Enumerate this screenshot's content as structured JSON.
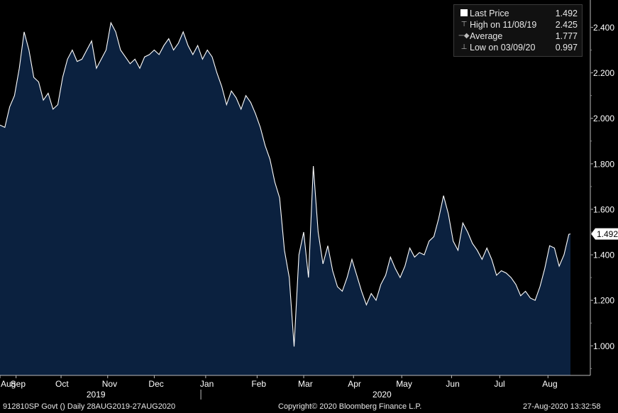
{
  "legend": {
    "items": [
      {
        "icon": "last-price-swatch",
        "label": "Last Price",
        "value": "1.492"
      },
      {
        "icon": "high-marker-icon",
        "label": "High on 11/08/19",
        "value": "2.425"
      },
      {
        "icon": "average-marker-icon",
        "label": "Average",
        "value": "1.777"
      },
      {
        "icon": "low-marker-icon",
        "label": "Low on 03/09/20",
        "value": "0.997"
      }
    ]
  },
  "last_price_tag": "1.492",
  "footer": {
    "left": "912810SP Govt ()  Daily 28AUG2019-27AUG2020",
    "center": "Copyright© 2020 Bloomberg Finance L.P.",
    "right": "27-Aug-2020 13:32:58"
  },
  "colors": {
    "background": "#000000",
    "area_fill": "#0b213f",
    "line": "#ffffff",
    "axis_text": "#ffffff"
  },
  "chart_data": {
    "type": "area",
    "x_start_label": "28AUG2019",
    "x_end_label": "27AUG2020",
    "ylim": [
      0.87,
      2.52
    ],
    "y_ticks": [
      "1.000",
      "1.200",
      "1.400",
      "1.600",
      "1.800",
      "2.000",
      "2.200",
      "2.400"
    ],
    "y_tick_values": [
      1.0,
      1.2,
      1.4,
      1.6,
      1.8,
      2.0,
      2.2,
      2.4
    ],
    "month_labels": [
      {
        "label": "Aug",
        "day": 0
      },
      {
        "label": "Sep",
        "day": 10
      },
      {
        "label": "Oct",
        "day": 38
      },
      {
        "label": "Nov",
        "day": 67
      },
      {
        "label": "Dec",
        "day": 96
      },
      {
        "label": "Jan",
        "day": 128
      },
      {
        "label": "Feb",
        "day": 160
      },
      {
        "label": "Mar",
        "day": 189
      },
      {
        "label": "Apr",
        "day": 220
      },
      {
        "label": "May",
        "day": 250
      },
      {
        "label": "Jun",
        "day": 281
      },
      {
        "label": "Jul",
        "day": 311
      },
      {
        "label": "Aug",
        "day": 341
      }
    ],
    "year_labels": [
      {
        "label": "2019",
        "day": 60
      },
      {
        "label": "2020",
        "day": 238
      }
    ],
    "series": [
      {
        "values": [
          [
            0,
            1.97
          ],
          [
            3,
            1.96
          ],
          [
            6,
            2.05
          ],
          [
            9,
            2.1
          ],
          [
            12,
            2.22
          ],
          [
            15,
            2.38
          ],
          [
            18,
            2.3
          ],
          [
            21,
            2.18
          ],
          [
            24,
            2.16
          ],
          [
            27,
            2.08
          ],
          [
            30,
            2.11
          ],
          [
            33,
            2.04
          ],
          [
            36,
            2.06
          ],
          [
            39,
            2.18
          ],
          [
            42,
            2.26
          ],
          [
            45,
            2.3
          ],
          [
            48,
            2.25
          ],
          [
            51,
            2.26
          ],
          [
            54,
            2.3
          ],
          [
            57,
            2.34
          ],
          [
            60,
            2.22
          ],
          [
            63,
            2.26
          ],
          [
            66,
            2.3
          ],
          [
            69,
            2.42
          ],
          [
            72,
            2.38
          ],
          [
            75,
            2.3
          ],
          [
            78,
            2.27
          ],
          [
            81,
            2.24
          ],
          [
            84,
            2.26
          ],
          [
            87,
            2.22
          ],
          [
            90,
            2.27
          ],
          [
            93,
            2.28
          ],
          [
            96,
            2.3
          ],
          [
            99,
            2.28
          ],
          [
            102,
            2.32
          ],
          [
            105,
            2.35
          ],
          [
            108,
            2.3
          ],
          [
            111,
            2.33
          ],
          [
            114,
            2.38
          ],
          [
            117,
            2.32
          ],
          [
            120,
            2.28
          ],
          [
            123,
            2.32
          ],
          [
            126,
            2.26
          ],
          [
            129,
            2.3
          ],
          [
            132,
            2.27
          ],
          [
            135,
            2.2
          ],
          [
            138,
            2.14
          ],
          [
            141,
            2.06
          ],
          [
            144,
            2.12
          ],
          [
            147,
            2.09
          ],
          [
            150,
            2.04
          ],
          [
            153,
            2.1
          ],
          [
            156,
            2.07
          ],
          [
            159,
            2.02
          ],
          [
            162,
            1.96
          ],
          [
            165,
            1.88
          ],
          [
            168,
            1.82
          ],
          [
            171,
            1.72
          ],
          [
            174,
            1.65
          ],
          [
            177,
            1.42
          ],
          [
            180,
            1.3
          ],
          [
            183,
            0.997
          ],
          [
            186,
            1.4
          ],
          [
            189,
            1.5
          ],
          [
            192,
            1.3
          ],
          [
            195,
            1.79
          ],
          [
            198,
            1.5
          ],
          [
            201,
            1.36
          ],
          [
            204,
            1.44
          ],
          [
            207,
            1.33
          ],
          [
            210,
            1.26
          ],
          [
            213,
            1.24
          ],
          [
            216,
            1.3
          ],
          [
            219,
            1.38
          ],
          [
            222,
            1.31
          ],
          [
            225,
            1.24
          ],
          [
            228,
            1.18
          ],
          [
            231,
            1.23
          ],
          [
            234,
            1.2
          ],
          [
            237,
            1.27
          ],
          [
            240,
            1.31
          ],
          [
            243,
            1.39
          ],
          [
            246,
            1.34
          ],
          [
            249,
            1.3
          ],
          [
            252,
            1.35
          ],
          [
            255,
            1.43
          ],
          [
            258,
            1.39
          ],
          [
            261,
            1.41
          ],
          [
            264,
            1.4
          ],
          [
            267,
            1.46
          ],
          [
            270,
            1.48
          ],
          [
            273,
            1.56
          ],
          [
            276,
            1.66
          ],
          [
            279,
            1.58
          ],
          [
            282,
            1.46
          ],
          [
            285,
            1.42
          ],
          [
            288,
            1.54
          ],
          [
            291,
            1.5
          ],
          [
            294,
            1.45
          ],
          [
            297,
            1.42
          ],
          [
            300,
            1.38
          ],
          [
            303,
            1.43
          ],
          [
            306,
            1.38
          ],
          [
            309,
            1.31
          ],
          [
            312,
            1.33
          ],
          [
            315,
            1.32
          ],
          [
            318,
            1.3
          ],
          [
            321,
            1.27
          ],
          [
            324,
            1.22
          ],
          [
            327,
            1.24
          ],
          [
            330,
            1.21
          ],
          [
            333,
            1.2
          ],
          [
            336,
            1.26
          ],
          [
            339,
            1.34
          ],
          [
            342,
            1.44
          ],
          [
            345,
            1.43
          ],
          [
            348,
            1.35
          ],
          [
            351,
            1.4
          ],
          [
            354,
            1.49
          ],
          [
            355,
            1.492
          ]
        ]
      }
    ]
  }
}
